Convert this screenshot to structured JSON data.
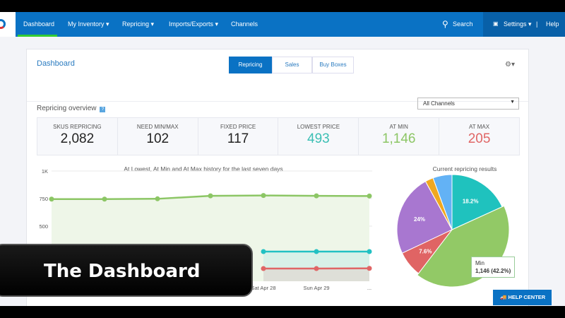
{
  "nav": {
    "items": [
      "Dashboard",
      "My Inventory ▾",
      "Repricing ▾",
      "Imports/Exports ▾",
      "Channels"
    ],
    "search": "Search",
    "settings": "Settings ▾",
    "help": "Help"
  },
  "header": {
    "title": "Dashboard",
    "tabs": [
      "Repricing",
      "Sales",
      "Buy Boxes"
    ],
    "active_tab": "Repricing"
  },
  "overview": {
    "title": "Repricing overview",
    "help": "?",
    "channel_select": "All Channels",
    "stats": [
      {
        "label": "SKUS REPRICING",
        "value": "2,082",
        "color": "#222222"
      },
      {
        "label": "NEED MIN/MAX",
        "value": "102",
        "color": "#222222"
      },
      {
        "label": "FIXED PRICE",
        "value": "117",
        "color": "#222222"
      },
      {
        "label": "LOWEST PRICE",
        "value": "493",
        "color": "#3cbfb4"
      },
      {
        "label": "AT MIN",
        "value": "1,146",
        "color": "#8cc665"
      },
      {
        "label": "AT MAX",
        "value": "205",
        "color": "#e06666"
      }
    ]
  },
  "chart_data": [
    {
      "type": "area",
      "title": "At Lowest, At Min and At Max history for the last seven days",
      "ylim": [
        0,
        1000
      ],
      "yticks": [
        "1K",
        "750",
        "500"
      ],
      "categories": [
        "",
        "",
        "",
        "",
        "Sat Apr 28",
        "Sun Apr 29",
        "..."
      ],
      "series": [
        {
          "color": "#8cc665",
          "values": [
            745,
            745,
            748,
            775,
            778,
            775,
            773
          ]
        },
        {
          "color": "#22c1c3",
          "values": [
            null,
            null,
            null,
            null,
            269,
            269,
            269
          ]
        },
        {
          "color": "#e06666",
          "values": [
            null,
            null,
            null,
            null,
            115,
            115,
            117
          ]
        }
      ]
    },
    {
      "type": "pie",
      "title": "Current repricing results",
      "slices": [
        {
          "value": 18.2,
          "label": "18.2%",
          "color": "#1fc2be"
        },
        {
          "value": 42.2,
          "label": "",
          "color": "#92c966"
        },
        {
          "value": 7.6,
          "label": "7.6%",
          "color": "#e06464"
        },
        {
          "value": 24,
          "label": "24%",
          "color": "#a877d0"
        },
        {
          "value": 2.4,
          "label": "",
          "color": "#f0a820"
        },
        {
          "value": 5.6,
          "label": "",
          "color": "#63b2f5"
        }
      ],
      "tooltip": {
        "name": "Min",
        "value": "1,146 (42.2%)"
      }
    }
  ],
  "overlay": "The Dashboard",
  "help_center": "HELP CENTER"
}
